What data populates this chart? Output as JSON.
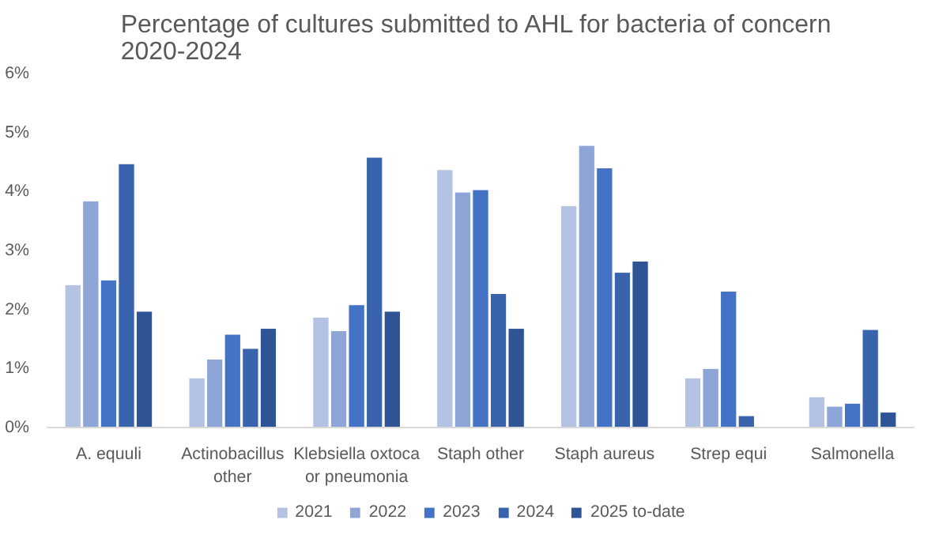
{
  "chart_data": {
    "type": "bar",
    "title": "Percentage of cultures  submitted to AHL for bacteria of concern\n2020-2024",
    "categories": [
      "A. equuli",
      "Actinobacillus other",
      "Klebsiella oxtoca or pneumonia",
      "Staph other",
      "Staph aureus",
      "Strep equi",
      "Salmonella"
    ],
    "series": [
      {
        "name": "2021",
        "color": "#b4c2e4",
        "values": [
          2.42,
          0.84,
          1.87,
          4.37,
          3.76,
          0.84,
          0.52
        ]
      },
      {
        "name": "2022",
        "color": "#8ea5d8",
        "values": [
          3.84,
          1.16,
          1.64,
          3.99,
          4.78,
          1.0,
          0.36
        ]
      },
      {
        "name": "2023",
        "color": "#4472c4",
        "values": [
          2.5,
          1.58,
          2.08,
          4.03,
          4.4,
          2.31,
          0.41
        ]
      },
      {
        "name": "2024",
        "color": "#3a63ad",
        "values": [
          4.47,
          1.34,
          4.58,
          2.27,
          2.63,
          0.2,
          1.66
        ]
      },
      {
        "name": "2025 to-date",
        "color": "#2f5496",
        "values": [
          1.97,
          1.68,
          1.97,
          1.68,
          2.82,
          null,
          0.26
        ]
      }
    ],
    "ylim": [
      0,
      6
    ],
    "yticks": [
      {
        "value": 0,
        "label": "0%"
      },
      {
        "value": 1,
        "label": "1%"
      },
      {
        "value": 2,
        "label": "2%"
      },
      {
        "value": 3,
        "label": "3%"
      },
      {
        "value": 4,
        "label": "4%"
      },
      {
        "value": 5,
        "label": "5%"
      },
      {
        "value": 6,
        "label": "6%"
      }
    ],
    "grid": false,
    "legend": "bottom"
  }
}
